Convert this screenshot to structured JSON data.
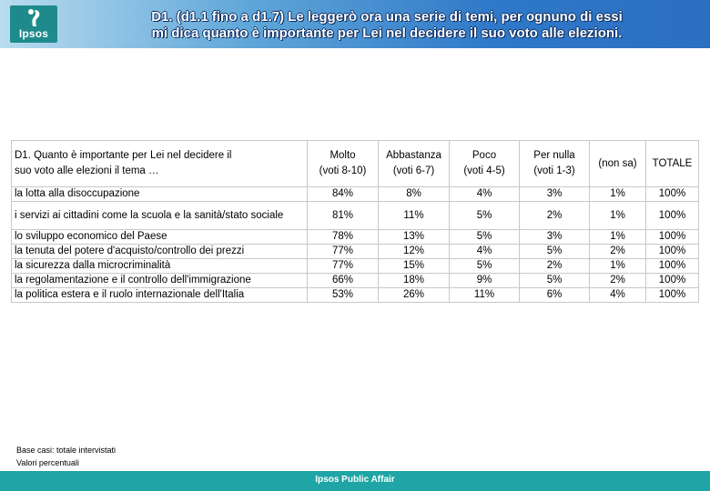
{
  "header": {
    "logo_text": "Ipsos",
    "title_line1": "D1. (d1.1 fino a d1.7) Le leggerò ora una serie di temi, per ognuno di essi",
    "title_line2": "mi dica quanto è importante per Lei nel decidere il suo voto alle elezioni."
  },
  "table": {
    "question_line1": "D1. Quanto è importante per Lei nel decidere il",
    "question_line2": "suo voto alle elezioni il tema …",
    "columns": [
      {
        "line1": "Molto",
        "line2": "(voti 8-10)"
      },
      {
        "line1": "Abbastanza",
        "line2": "(voti 6-7)"
      },
      {
        "line1": "Poco",
        "line2": "(voti 4-5)"
      },
      {
        "line1": "Per nulla",
        "line2": "(voti 1-3)"
      },
      {
        "line1": "(non sa)",
        "line2": ""
      },
      {
        "line1": "TOTALE",
        "line2": ""
      }
    ],
    "rows": [
      {
        "label": "la lotta alla disoccupazione",
        "values": [
          "84%",
          "8%",
          "4%",
          "3%",
          "1%",
          "100%"
        ]
      },
      {
        "label": "i servizi ai cittadini come la scuola e la sanità/stato sociale",
        "values": [
          "81%",
          "11%",
          "5%",
          "2%",
          "1%",
          "100%"
        ]
      },
      {
        "label": "lo sviluppo economico del Paese",
        "values": [
          "78%",
          "13%",
          "5%",
          "3%",
          "1%",
          "100%"
        ]
      },
      {
        "label": "la tenuta del potere d'acquisto/controllo dei prezzi",
        "values": [
          "77%",
          "12%",
          "4%",
          "5%",
          "2%",
          "100%"
        ]
      },
      {
        "label": "la sicurezza dalla microcriminalità",
        "values": [
          "77%",
          "15%",
          "5%",
          "2%",
          "1%",
          "100%"
        ]
      },
      {
        "label": "la regolamentazione e il controllo dell'immigrazione",
        "values": [
          "66%",
          "18%",
          "9%",
          "5%",
          "2%",
          "100%"
        ]
      },
      {
        "label": "la politica estera e il ruolo internazionale dell'Italia",
        "values": [
          "53%",
          "26%",
          "11%",
          "6%",
          "4%",
          "100%"
        ]
      }
    ]
  },
  "notes": {
    "base": "Base casi: totale intervistati",
    "values": "Valori percentuali"
  },
  "footer": {
    "text": "Ipsos Public Affair"
  },
  "colors": {
    "footer_bg": "#1fa5a5",
    "logo_bg": "#1f8a8c",
    "header_gradient_end": "#2b6fc2"
  }
}
